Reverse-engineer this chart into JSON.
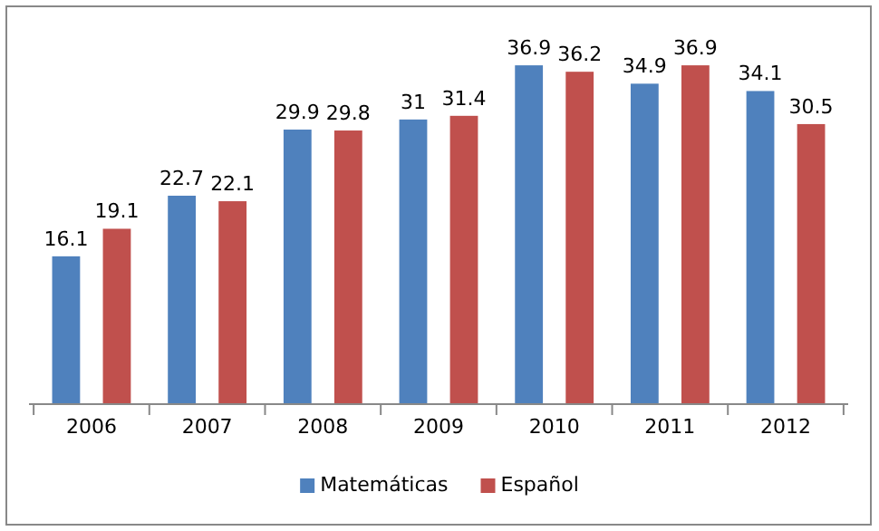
{
  "chart_data": {
    "type": "bar",
    "categories": [
      "2006",
      "2007",
      "2008",
      "2009",
      "2010",
      "2011",
      "2012"
    ],
    "series": [
      {
        "name": "Matemáticas",
        "color": "#4f81bd",
        "values": [
          16.1,
          22.7,
          29.9,
          31,
          36.9,
          34.9,
          34.1
        ]
      },
      {
        "name": "Español",
        "color": "#c0504d",
        "values": [
          19.1,
          22.1,
          29.8,
          31.4,
          36.2,
          36.9,
          30.5
        ]
      }
    ],
    "data_labels": true,
    "legend": "bottom"
  }
}
